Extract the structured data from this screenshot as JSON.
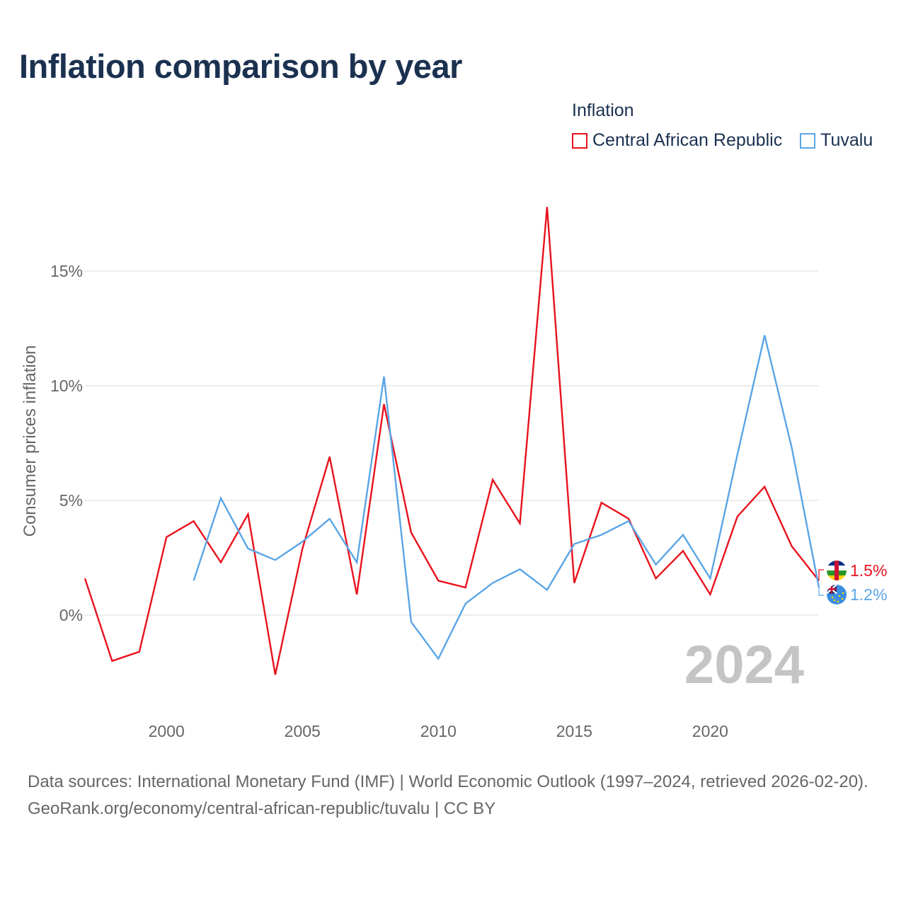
{
  "title": "Inflation comparison by year",
  "legend": {
    "title": "Inflation",
    "items": [
      {
        "label": "Central African Republic",
        "color": "#e8121d"
      },
      {
        "label": "Tuvalu",
        "color": "#5aa5e6"
      }
    ]
  },
  "chart_data": {
    "type": "line",
    "title": "Inflation comparison by year",
    "xlabel": "",
    "ylabel": "Consumer prices inflation",
    "xlim": [
      1997,
      2024
    ],
    "ylim": [
      -4,
      18
    ],
    "y_ticks": [
      0,
      5,
      10,
      15
    ],
    "y_tick_labels": [
      "0%",
      "5%",
      "10%",
      "15%"
    ],
    "x_ticks": [
      2000,
      2005,
      2010,
      2015,
      2020
    ],
    "x_tick_labels": [
      "2000",
      "2005",
      "2010",
      "2015",
      "2020"
    ],
    "grid": true,
    "watermark_year": "2024",
    "series": [
      {
        "name": "Central African Republic",
        "color": "#e8121d",
        "x": [
          1997,
          1998,
          1999,
          2000,
          2001,
          2002,
          2003,
          2004,
          2005,
          2006,
          2007,
          2008,
          2009,
          2010,
          2011,
          2012,
          2013,
          2014,
          2015,
          2016,
          2017,
          2018,
          2019,
          2020,
          2021,
          2022,
          2023,
          2024
        ],
        "values": [
          1.6,
          -2.0,
          -1.6,
          3.4,
          4.1,
          2.3,
          4.4,
          -2.6,
          2.9,
          6.9,
          0.9,
          9.2,
          3.6,
          1.5,
          1.2,
          5.9,
          4.0,
          17.8,
          1.4,
          4.9,
          4.2,
          1.6,
          2.8,
          0.9,
          4.3,
          5.6,
          3.0,
          1.5
        ],
        "end_label": "1.5%"
      },
      {
        "name": "Tuvalu",
        "color": "#5aa5e6",
        "x": [
          2001,
          2002,
          2003,
          2004,
          2005,
          2006,
          2007,
          2008,
          2009,
          2010,
          2011,
          2012,
          2013,
          2014,
          2015,
          2016,
          2017,
          2018,
          2019,
          2020,
          2021,
          2022,
          2023,
          2024
        ],
        "values": [
          1.5,
          5.1,
          2.9,
          2.4,
          3.2,
          4.2,
          2.3,
          10.4,
          -0.3,
          -1.9,
          0.5,
          1.4,
          2.0,
          1.1,
          3.1,
          3.5,
          4.1,
          2.2,
          3.5,
          1.6,
          7.0,
          12.2,
          7.3,
          1.2
        ],
        "end_label": "1.2%"
      }
    ]
  },
  "footer": {
    "sources": "Data sources: International Monetary Fund (IMF) | World Economic Outlook (1997–2024, retrieved 2026-02-20).",
    "attribution": "GeoRank.org/economy/central-african-republic/tuvalu | CC BY"
  }
}
